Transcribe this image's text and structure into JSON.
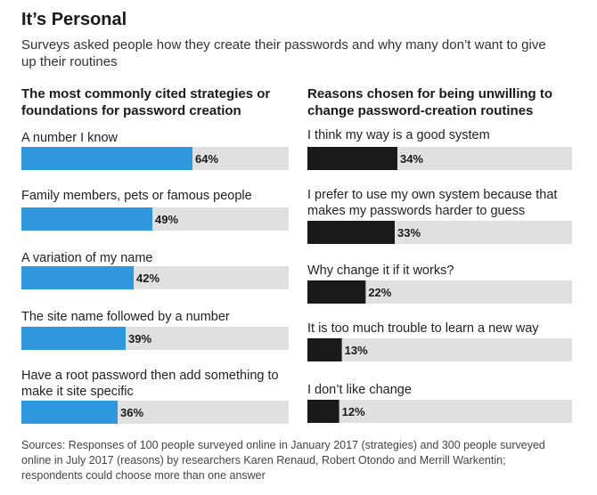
{
  "header": {
    "title": "It’s Personal",
    "subtitle": "Surveys asked people how they create their passwords and why many don’t want to give up their routines"
  },
  "colors": {
    "left_bar": "#2f97dd",
    "right_bar": "#1a1a1a",
    "track": "#e0e0e0"
  },
  "chart_data": [
    {
      "type": "bar",
      "orientation": "horizontal",
      "title": "The most commonly cited strategies or foundations for password creation",
      "categories": [
        "A number I know",
        "Family members, pets or famous people",
        "A variation of my name",
        "The site name followed by a number",
        "Have a root password then add something to make it site specific"
      ],
      "values": [
        64,
        49,
        42,
        39,
        36
      ],
      "labels": [
        "64%",
        "49%",
        "42%",
        "39%",
        "36%"
      ],
      "ylim": [
        0,
        100
      ]
    },
    {
      "type": "bar",
      "orientation": "horizontal",
      "title": "Reasons chosen for being unwilling to change password-creation routines",
      "categories": [
        "I think my way is a good system",
        "I prefer to use my own system because that makes my passwords harder to guess",
        "Why change it if it works?",
        "It is too much trouble to learn a new way",
        "I don’t like change"
      ],
      "values": [
        34,
        33,
        22,
        13,
        12
      ],
      "labels": [
        "34%",
        "33%",
        "22%",
        "13%",
        "12%"
      ],
      "ylim": [
        0,
        100
      ]
    }
  ],
  "source": "Sources: Responses of 100 people surveyed online in January 2017 (strategies) and 300 people surveyed online in July 2017 (reasons) by researchers Karen Renaud, Robert Otondo and Merrill Warkentin; respondents could choose more than one answer"
}
